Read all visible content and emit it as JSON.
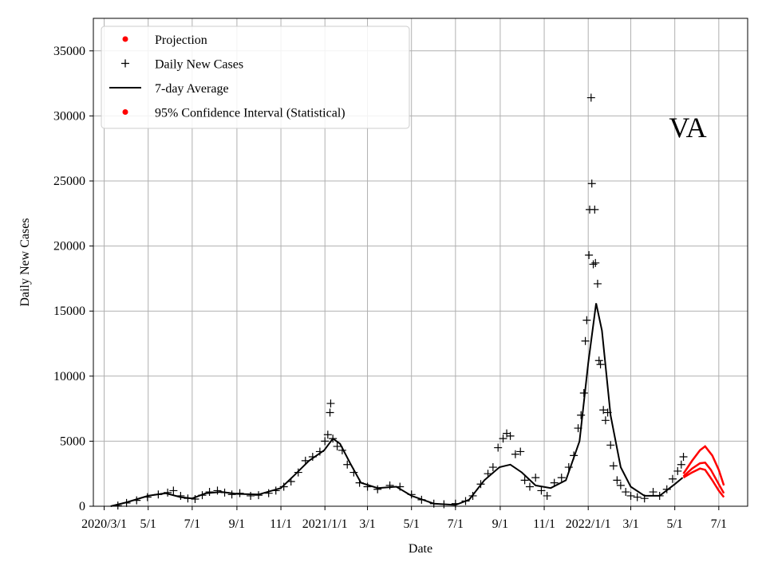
{
  "chart_data": {
    "type": "line",
    "title": "",
    "annotation": "VA",
    "xlabel": "Date",
    "ylabel": "Daily New Cases",
    "ylim": [
      0,
      37500
    ],
    "xlim": [
      "2020-02-15",
      "2022-08-10"
    ],
    "grid": true,
    "legend_position": "top-left",
    "y_ticks": [
      0,
      5000,
      10000,
      15000,
      20000,
      25000,
      30000,
      35000
    ],
    "x_ticks": [
      {
        "date": "2020-03-01",
        "label": "2020/3/1"
      },
      {
        "date": "2020-05-01",
        "label": "5/1"
      },
      {
        "date": "2020-07-01",
        "label": "7/1"
      },
      {
        "date": "2020-09-01",
        "label": "9/1"
      },
      {
        "date": "2020-11-01",
        "label": "11/1"
      },
      {
        "date": "2021-01-01",
        "label": "2021/1/1"
      },
      {
        "date": "2021-03-01",
        "label": "3/1"
      },
      {
        "date": "2021-05-01",
        "label": "5/1"
      },
      {
        "date": "2021-07-01",
        "label": "7/1"
      },
      {
        "date": "2021-09-01",
        "label": "9/1"
      },
      {
        "date": "2021-11-01",
        "label": "11/1"
      },
      {
        "date": "2022-01-01",
        "label": "2022/1/1"
      },
      {
        "date": "2022-03-01",
        "label": "3/1"
      },
      {
        "date": "2022-05-01",
        "label": "5/1"
      },
      {
        "date": "2022-07-01",
        "label": "7/1"
      }
    ],
    "legend": [
      {
        "label": "Projection",
        "marker": "dot",
        "color": "#ff0000"
      },
      {
        "label": "Daily New Cases",
        "marker": "plus",
        "color": "#000000"
      },
      {
        "label": "7-day Average",
        "marker": "line",
        "color": "#000000"
      },
      {
        "label": "95% Confidence Interval (Statistical)",
        "marker": "dot",
        "color": "#ff0000"
      }
    ],
    "series": [
      {
        "name": "7-day Average",
        "color": "#000000",
        "points": [
          [
            "2020-03-10",
            0
          ],
          [
            "2020-04-01",
            300
          ],
          [
            "2020-05-01",
            800
          ],
          [
            "2020-05-25",
            1000
          ],
          [
            "2020-06-15",
            700
          ],
          [
            "2020-07-01",
            600
          ],
          [
            "2020-07-20",
            1000
          ],
          [
            "2020-08-10",
            1100
          ],
          [
            "2020-09-01",
            950
          ],
          [
            "2020-10-01",
            900
          ],
          [
            "2020-11-01",
            1400
          ],
          [
            "2020-11-20",
            2400
          ],
          [
            "2020-12-10",
            3500
          ],
          [
            "2020-12-31",
            4300
          ],
          [
            "2021-01-12",
            5200
          ],
          [
            "2021-01-22",
            4800
          ],
          [
            "2021-02-05",
            3300
          ],
          [
            "2021-02-20",
            1800
          ],
          [
            "2021-03-15",
            1400
          ],
          [
            "2021-04-10",
            1500
          ],
          [
            "2021-05-01",
            800
          ],
          [
            "2021-06-01",
            200
          ],
          [
            "2021-07-01",
            100
          ],
          [
            "2021-07-20",
            500
          ],
          [
            "2021-08-10",
            2000
          ],
          [
            "2021-08-31",
            3000
          ],
          [
            "2021-09-15",
            3200
          ],
          [
            "2021-10-01",
            2600
          ],
          [
            "2021-10-20",
            1600
          ],
          [
            "2021-11-10",
            1400
          ],
          [
            "2021-12-01",
            2000
          ],
          [
            "2021-12-20",
            5000
          ],
          [
            "2022-01-01",
            11000
          ],
          [
            "2022-01-12",
            15600
          ],
          [
            "2022-01-20",
            13500
          ],
          [
            "2022-02-01",
            7000
          ],
          [
            "2022-02-15",
            3000
          ],
          [
            "2022-03-01",
            1500
          ],
          [
            "2022-03-20",
            800
          ],
          [
            "2022-04-10",
            800
          ],
          [
            "2022-05-01",
            1700
          ],
          [
            "2022-05-12",
            2200
          ]
        ]
      },
      {
        "name": "Daily New Cases",
        "color": "#000000",
        "points": [
          [
            "2020-03-20",
            50
          ],
          [
            "2020-04-01",
            250
          ],
          [
            "2020-04-15",
            450
          ],
          [
            "2020-04-30",
            700
          ],
          [
            "2020-05-15",
            900
          ],
          [
            "2020-05-28",
            1050
          ],
          [
            "2020-06-05",
            1200
          ],
          [
            "2020-06-15",
            800
          ],
          [
            "2020-06-25",
            600
          ],
          [
            "2020-07-05",
            550
          ],
          [
            "2020-07-15",
            850
          ],
          [
            "2020-07-25",
            1100
          ],
          [
            "2020-08-05",
            1200
          ],
          [
            "2020-08-15",
            1050
          ],
          [
            "2020-08-25",
            900
          ],
          [
            "2020-09-05",
            1000
          ],
          [
            "2020-09-20",
            800
          ],
          [
            "2020-10-01",
            850
          ],
          [
            "2020-10-15",
            1000
          ],
          [
            "2020-10-25",
            1200
          ],
          [
            "2020-11-05",
            1500
          ],
          [
            "2020-11-15",
            1900
          ],
          [
            "2020-11-25",
            2600
          ],
          [
            "2020-12-05",
            3500
          ],
          [
            "2020-12-15",
            3800
          ],
          [
            "2020-12-25",
            4200
          ],
          [
            "2021-01-01",
            5000
          ],
          [
            "2021-01-05",
            5500
          ],
          [
            "2021-01-08",
            7200
          ],
          [
            "2021-01-09",
            7900
          ],
          [
            "2021-01-12",
            5200
          ],
          [
            "2021-01-18",
            4600
          ],
          [
            "2021-01-25",
            4300
          ],
          [
            "2021-02-01",
            3200
          ],
          [
            "2021-02-10",
            2600
          ],
          [
            "2021-02-18",
            1800
          ],
          [
            "2021-03-01",
            1500
          ],
          [
            "2021-03-15",
            1300
          ],
          [
            "2021-04-01",
            1600
          ],
          [
            "2021-04-15",
            1500
          ],
          [
            "2021-05-01",
            900
          ],
          [
            "2021-05-15",
            500
          ],
          [
            "2021-06-01",
            200
          ],
          [
            "2021-06-15",
            150
          ],
          [
            "2021-07-01",
            200
          ],
          [
            "2021-07-15",
            400
          ],
          [
            "2021-07-25",
            800
          ],
          [
            "2021-08-05",
            1700
          ],
          [
            "2021-08-15",
            2500
          ],
          [
            "2021-08-22",
            3000
          ],
          [
            "2021-08-29",
            4500
          ],
          [
            "2021-09-05",
            5200
          ],
          [
            "2021-09-10",
            5600
          ],
          [
            "2021-09-15",
            5400
          ],
          [
            "2021-09-22",
            4000
          ],
          [
            "2021-09-29",
            4200
          ],
          [
            "2021-10-05",
            2000
          ],
          [
            "2021-10-12",
            1500
          ],
          [
            "2021-10-20",
            2200
          ],
          [
            "2021-10-28",
            1200
          ],
          [
            "2021-11-05",
            800
          ],
          [
            "2021-11-15",
            1800
          ],
          [
            "2021-11-25",
            2200
          ],
          [
            "2021-12-05",
            3000
          ],
          [
            "2021-12-12",
            3900
          ],
          [
            "2021-12-18",
            6000
          ],
          [
            "2021-12-22",
            7000
          ],
          [
            "2021-12-26",
            8700
          ],
          [
            "2021-12-28",
            12700
          ],
          [
            "2021-12-30",
            14300
          ],
          [
            "2022-01-02",
            19300
          ],
          [
            "2022-01-03",
            22800
          ],
          [
            "2022-01-05",
            31400
          ],
          [
            "2022-01-06",
            24800
          ],
          [
            "2022-01-08",
            18600
          ],
          [
            "2022-01-10",
            22800
          ],
          [
            "2022-01-11",
            18700
          ],
          [
            "2022-01-14",
            17100
          ],
          [
            "2022-01-16",
            11200
          ],
          [
            "2022-01-18",
            10900
          ],
          [
            "2022-01-22",
            7400
          ],
          [
            "2022-01-25",
            6600
          ],
          [
            "2022-01-28",
            7200
          ],
          [
            "2022-02-01",
            4700
          ],
          [
            "2022-02-05",
            3100
          ],
          [
            "2022-02-10",
            2000
          ],
          [
            "2022-02-15",
            1600
          ],
          [
            "2022-02-22",
            1100
          ],
          [
            "2022-03-01",
            800
          ],
          [
            "2022-03-10",
            700
          ],
          [
            "2022-03-20",
            600
          ],
          [
            "2022-04-01",
            1100
          ],
          [
            "2022-04-10",
            800
          ],
          [
            "2022-04-20",
            1300
          ],
          [
            "2022-04-28",
            2100
          ],
          [
            "2022-05-05",
            2700
          ],
          [
            "2022-05-10",
            3200
          ],
          [
            "2022-05-13",
            3800
          ]
        ]
      },
      {
        "name": "Projection",
        "color": "#ff0000",
        "points": [
          [
            "2022-05-13",
            2300
          ],
          [
            "2022-05-25",
            2900
          ],
          [
            "2022-06-05",
            3300
          ],
          [
            "2022-06-12",
            3350
          ],
          [
            "2022-06-20",
            2800
          ],
          [
            "2022-07-01",
            1700
          ],
          [
            "2022-07-08",
            1000
          ]
        ]
      },
      {
        "name": "95% Confidence Interval (Statistical) upper",
        "color": "#ff0000",
        "points": [
          [
            "2022-05-13",
            2500
          ],
          [
            "2022-05-25",
            3500
          ],
          [
            "2022-06-05",
            4300
          ],
          [
            "2022-06-12",
            4600
          ],
          [
            "2022-06-22",
            3900
          ],
          [
            "2022-07-01",
            2800
          ],
          [
            "2022-07-08",
            1600
          ]
        ]
      },
      {
        "name": "95% Confidence Interval (Statistical) lower",
        "color": "#ff0000",
        "points": [
          [
            "2022-05-13",
            2200
          ],
          [
            "2022-05-25",
            2600
          ],
          [
            "2022-06-05",
            2900
          ],
          [
            "2022-06-12",
            2800
          ],
          [
            "2022-06-22",
            2000
          ],
          [
            "2022-07-01",
            1200
          ],
          [
            "2022-07-08",
            700
          ]
        ]
      }
    ]
  }
}
